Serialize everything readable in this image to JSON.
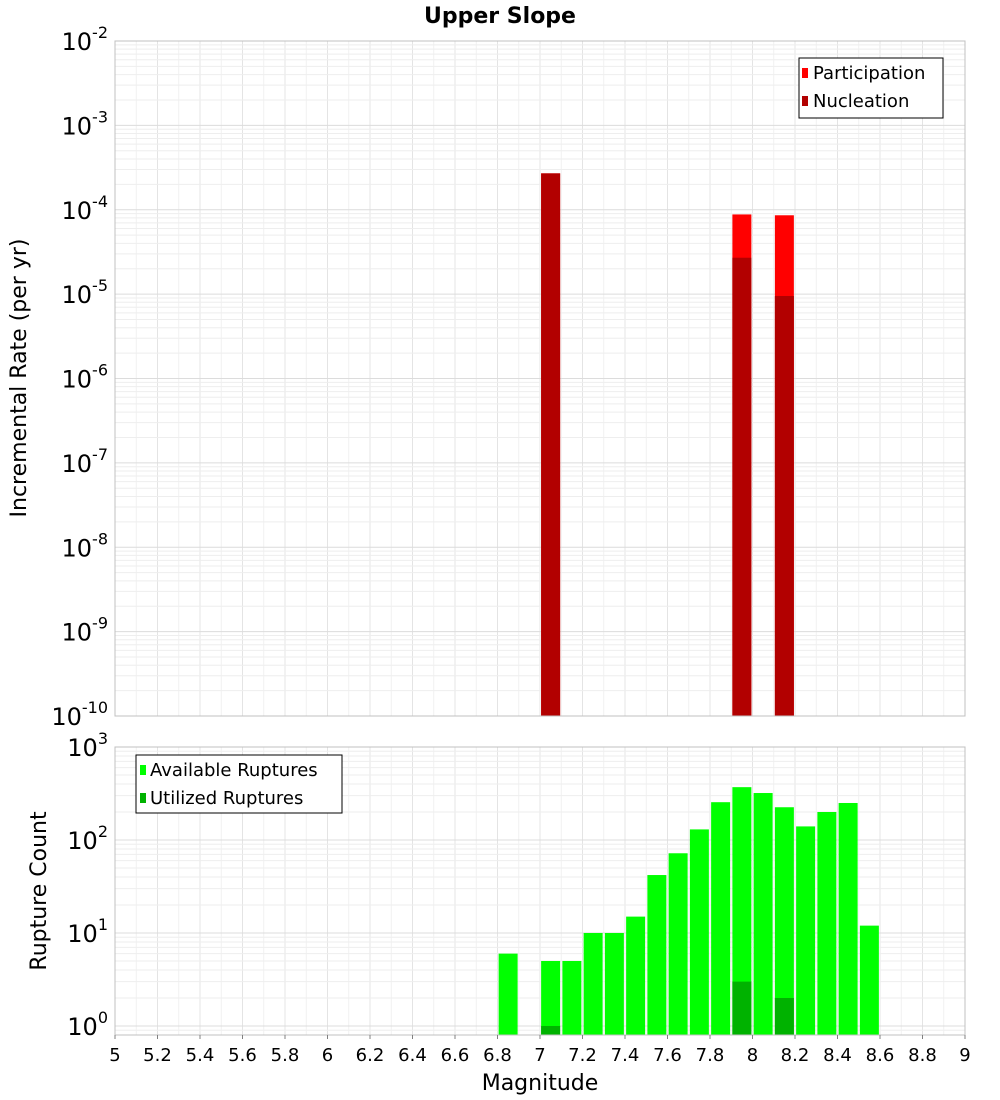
{
  "chart_data": [
    {
      "type": "bar",
      "title": "Upper Slope",
      "ylabel": "Incremental Rate (per yr)",
      "xlabel": "",
      "yscale": "log",
      "ylim": [
        1e-10,
        0.01
      ],
      "xlim": [
        5,
        9
      ],
      "y_tick_labels": [
        {
          "exp": -2,
          "value": 0.01
        },
        {
          "exp": -3,
          "value": 0.001
        },
        {
          "exp": -4,
          "value": 0.0001
        },
        {
          "exp": -5,
          "value": 1e-05
        },
        {
          "exp": -6,
          "value": 1e-06
        },
        {
          "exp": -7,
          "value": 1e-07
        },
        {
          "exp": -8,
          "value": 1e-08
        },
        {
          "exp": -9,
          "value": 1e-09
        },
        {
          "exp": -10,
          "value": 1e-10
        }
      ],
      "tick_base": "10",
      "legend": {
        "position": "top-right",
        "items": [
          {
            "label": "Participation",
            "color": "#ff0000"
          },
          {
            "label": "Nucleation",
            "color": "#b20000"
          }
        ]
      },
      "series": [
        {
          "name": "Participation",
          "color": "#ff0000",
          "points": [
            {
              "x": 7.05,
              "y": 0.00027
            },
            {
              "x": 7.95,
              "y": 8.8e-05
            },
            {
              "x": 8.15,
              "y": 8.6e-05
            }
          ]
        },
        {
          "name": "Nucleation",
          "color": "#b20000",
          "points": [
            {
              "x": 7.05,
              "y": 0.00027
            },
            {
              "x": 7.95,
              "y": 2.7e-05
            },
            {
              "x": 8.15,
              "y": 9.5e-06
            }
          ]
        }
      ]
    },
    {
      "type": "bar",
      "title": "",
      "ylabel": "Rupture Count",
      "xlabel": "Magnitude",
      "yscale": "log",
      "ylim": [
        0.8,
        1000
      ],
      "xlim": [
        5,
        9
      ],
      "y_tick_labels": [
        {
          "exp": 3,
          "value": 1000
        },
        {
          "exp": 2,
          "value": 100
        },
        {
          "exp": 1,
          "value": 10
        },
        {
          "exp": 0,
          "value": 1
        }
      ],
      "tick_base": "10",
      "x_tick_labels": [
        "5",
        "5.2",
        "5.4",
        "5.6",
        "5.8",
        "6",
        "6.2",
        "6.4",
        "6.6",
        "6.8",
        "7",
        "7.2",
        "7.4",
        "7.6",
        "7.8",
        "8",
        "8.2",
        "8.4",
        "8.6",
        "8.8",
        "9"
      ],
      "x_tick_values": [
        5,
        5.2,
        5.4,
        5.6,
        5.8,
        6,
        6.2,
        6.4,
        6.6,
        6.8,
        7,
        7.2,
        7.4,
        7.6,
        7.8,
        8,
        8.2,
        8.4,
        8.6,
        8.8,
        9
      ],
      "legend": {
        "position": "top-left",
        "items": [
          {
            "label": "Available Ruptures",
            "color": "#00ff00"
          },
          {
            "label": "Utilized Ruptures",
            "color": "#00b200"
          }
        ]
      },
      "series": [
        {
          "name": "Available Ruptures",
          "color": "#00ff00",
          "points": [
            {
              "x": 6.85,
              "y": 6
            },
            {
              "x": 7.05,
              "y": 5
            },
            {
              "x": 7.15,
              "y": 5
            },
            {
              "x": 7.25,
              "y": 10
            },
            {
              "x": 7.35,
              "y": 10
            },
            {
              "x": 7.45,
              "y": 15
            },
            {
              "x": 7.55,
              "y": 42
            },
            {
              "x": 7.65,
              "y": 72
            },
            {
              "x": 7.75,
              "y": 130
            },
            {
              "x": 7.85,
              "y": 255
            },
            {
              "x": 7.95,
              "y": 370
            },
            {
              "x": 8.05,
              "y": 320
            },
            {
              "x": 8.15,
              "y": 225
            },
            {
              "x": 8.25,
              "y": 140
            },
            {
              "x": 8.35,
              "y": 200
            },
            {
              "x": 8.45,
              "y": 250
            },
            {
              "x": 8.55,
              "y": 12
            }
          ]
        },
        {
          "name": "Utilized Ruptures",
          "color": "#00b200",
          "points": [
            {
              "x": 7.05,
              "y": 1
            },
            {
              "x": 7.95,
              "y": 3
            },
            {
              "x": 8.15,
              "y": 2
            }
          ]
        }
      ]
    }
  ]
}
